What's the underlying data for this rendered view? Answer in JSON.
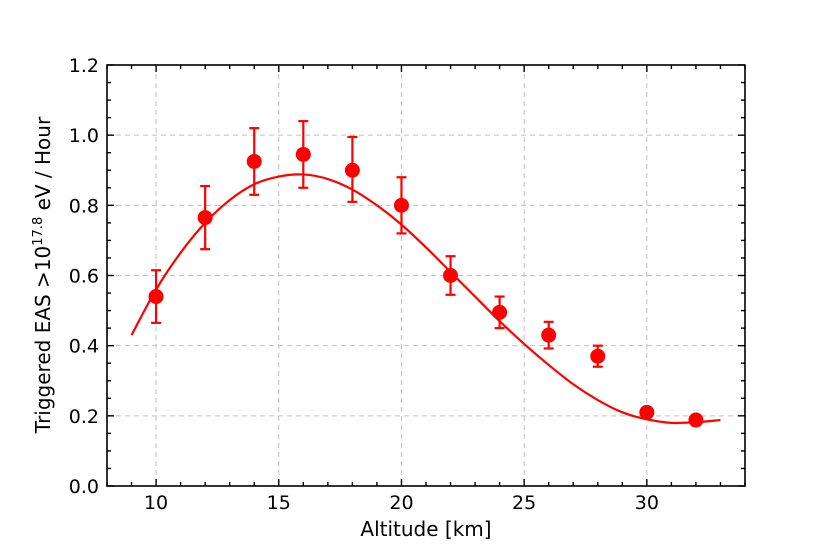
{
  "chart_data": {
    "type": "scatter",
    "title": "",
    "xlabel": "Altitude [km]",
    "ylabel": {
      "base": "Triggered EAS >10",
      "exponent": "17.8",
      "suffix": " eV / Hour"
    },
    "xlim": [
      8,
      34
    ],
    "ylim": [
      0.0,
      1.2
    ],
    "x_ticks": [
      10,
      15,
      20,
      25,
      30
    ],
    "x_tick_labels": [
      "10",
      "15",
      "20",
      "25",
      "30"
    ],
    "y_ticks": [
      0.0,
      0.2,
      0.4,
      0.6,
      0.8,
      1.0,
      1.2
    ],
    "y_tick_labels": [
      "0.0",
      "0.2",
      "0.4",
      "0.6",
      "0.8",
      "1.0",
      "1.2"
    ],
    "grid": true,
    "color": "#ff0000",
    "points": [
      {
        "x": 10,
        "y": 0.54,
        "err_low": 0.075,
        "err_high": 0.075
      },
      {
        "x": 12,
        "y": 0.765,
        "err_low": 0.09,
        "err_high": 0.09
      },
      {
        "x": 14,
        "y": 0.925,
        "err_low": 0.095,
        "err_high": 0.095
      },
      {
        "x": 16,
        "y": 0.945,
        "err_low": 0.095,
        "err_high": 0.095
      },
      {
        "x": 18,
        "y": 0.9,
        "err_low": 0.09,
        "err_high": 0.095
      },
      {
        "x": 20,
        "y": 0.8,
        "err_low": 0.08,
        "err_high": 0.08
      },
      {
        "x": 22,
        "y": 0.6,
        "err_low": 0.055,
        "err_high": 0.055
      },
      {
        "x": 24,
        "y": 0.495,
        "err_low": 0.045,
        "err_high": 0.045
      },
      {
        "x": 26,
        "y": 0.43,
        "err_low": 0.038,
        "err_high": 0.038
      },
      {
        "x": 28,
        "y": 0.37,
        "err_low": 0.03,
        "err_high": 0.03
      },
      {
        "x": 30,
        "y": 0.21,
        "err_low": 0.012,
        "err_high": 0.012
      },
      {
        "x": 32,
        "y": 0.188,
        "err_low": 0.01,
        "err_high": 0.01
      }
    ],
    "fit_curve": {
      "x": [
        9,
        10,
        11,
        12,
        13,
        14,
        15,
        16,
        17,
        18,
        19,
        20,
        21,
        22,
        23,
        24,
        25,
        26,
        27,
        28,
        29,
        30,
        31,
        32,
        33
      ],
      "y": [
        0.43,
        0.56,
        0.665,
        0.75,
        0.815,
        0.86,
        0.882,
        0.888,
        0.875,
        0.845,
        0.8,
        0.745,
        0.68,
        0.61,
        0.54,
        0.47,
        0.405,
        0.345,
        0.29,
        0.245,
        0.21,
        0.19,
        0.18,
        0.182,
        0.188
      ]
    }
  }
}
